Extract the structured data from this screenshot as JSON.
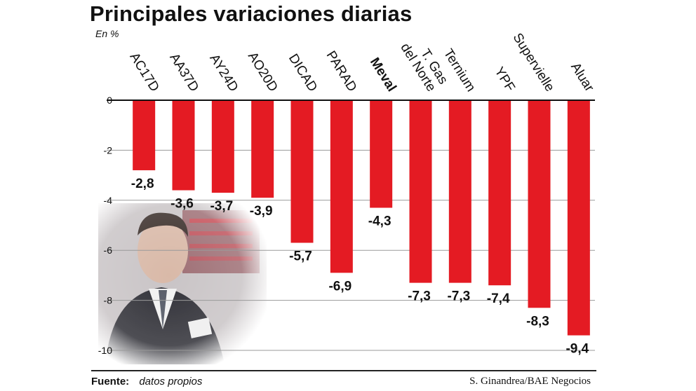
{
  "header": {
    "title": "Principales variaciones diarias",
    "unit": "En %"
  },
  "footer": {
    "source_label": "Fuente:",
    "source_value": "datos propios",
    "credit": "S. Ginandrea/BAE Negocios"
  },
  "colors": {
    "bar": "#e41b23",
    "grid": "#9a9a9a",
    "axis": "#111111"
  },
  "photo": {
    "icon": "trader-photo"
  },
  "chart_data": {
    "type": "bar",
    "title": "Principales variaciones diarias",
    "ylabel": "En %",
    "xlabel": "",
    "ylim": [
      -10,
      0
    ],
    "yticks": [
      "0",
      "-2",
      "-4",
      "-6",
      "-8",
      "-10"
    ],
    "ytick_values": [
      0,
      -2,
      -4,
      -6,
      -8,
      -10
    ],
    "grid": true,
    "categories": [
      "AC17D",
      "AA37D",
      "AY24D",
      "AO20D",
      "DICAD",
      "PARAD",
      "Meval",
      "T. Gas del Norte",
      "Ternium",
      "YPF",
      "Supervielle",
      "Aluar"
    ],
    "category_lines": [
      [
        "AC17D"
      ],
      [
        "AA37D"
      ],
      [
        "AY24D"
      ],
      [
        "AO20D"
      ],
      [
        "DICAD"
      ],
      [
        "PARAD"
      ],
      [
        "Meval"
      ],
      [
        "T. Gas",
        "del Norte"
      ],
      [
        "Ternium"
      ],
      [
        "YPF"
      ],
      [
        "Supervielle"
      ],
      [
        "Aluar"
      ]
    ],
    "highlight": [
      false,
      false,
      false,
      false,
      false,
      false,
      true,
      false,
      false,
      false,
      false,
      false
    ],
    "values": [
      -2.8,
      -3.6,
      -3.7,
      -3.9,
      -5.7,
      -6.9,
      -4.3,
      -7.3,
      -7.3,
      -7.4,
      -8.3,
      -9.4
    ],
    "value_labels": [
      "-2,8",
      "-3,6",
      "-3,7",
      "-3,9",
      "-5,7",
      "-6,9",
      "-4,3",
      "-7,3",
      "-7,3",
      "-7,4",
      "-8,3",
      "-9,4"
    ]
  }
}
